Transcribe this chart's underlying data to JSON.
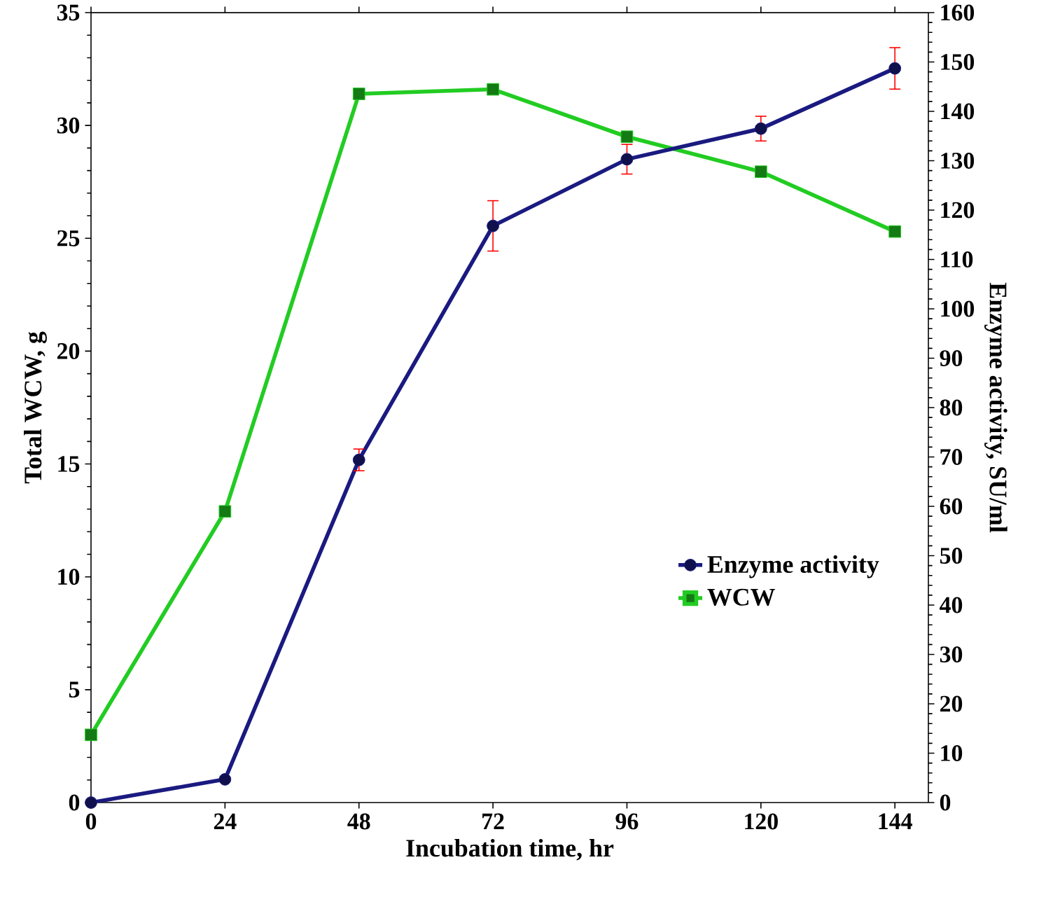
{
  "chart_data": {
    "type": "line",
    "xlabel": "Incubation time, hr",
    "ylabel": "Total WCW, g",
    "y2label": "Enzyme activity, SU/ml",
    "x": [
      0,
      24,
      48,
      72,
      96,
      120,
      144
    ],
    "series": [
      {
        "name": "Enzyme activity",
        "color": "#1a1a80",
        "marker": "circle",
        "axis": "y2",
        "values": [
          0,
          4.7,
          69.4,
          116.8,
          130.3,
          136.5,
          148.7
        ],
        "errors": [
          null,
          null,
          2.2,
          5.1,
          3,
          2.5,
          4.2
        ]
      },
      {
        "name": "WCW",
        "color": "#22cc22",
        "marker": "square",
        "values": [
          3.0,
          12.9,
          31.4,
          31.6,
          29.5,
          27.95,
          25.3
        ]
      }
    ],
    "xlim": [
      0,
      150
    ],
    "xticks": [
      0,
      24,
      48,
      72,
      96,
      120,
      144
    ],
    "ylim": [
      0,
      35
    ],
    "yticks": [
      0,
      5,
      10,
      15,
      20,
      25,
      30,
      35
    ],
    "y2lim": [
      0,
      160
    ],
    "y2ticks": [
      0,
      10,
      20,
      30,
      40,
      50,
      60,
      70,
      80,
      90,
      100,
      110,
      120,
      130,
      140,
      150,
      160
    ],
    "grid": false,
    "legend": "right",
    "line_style": "solid"
  }
}
